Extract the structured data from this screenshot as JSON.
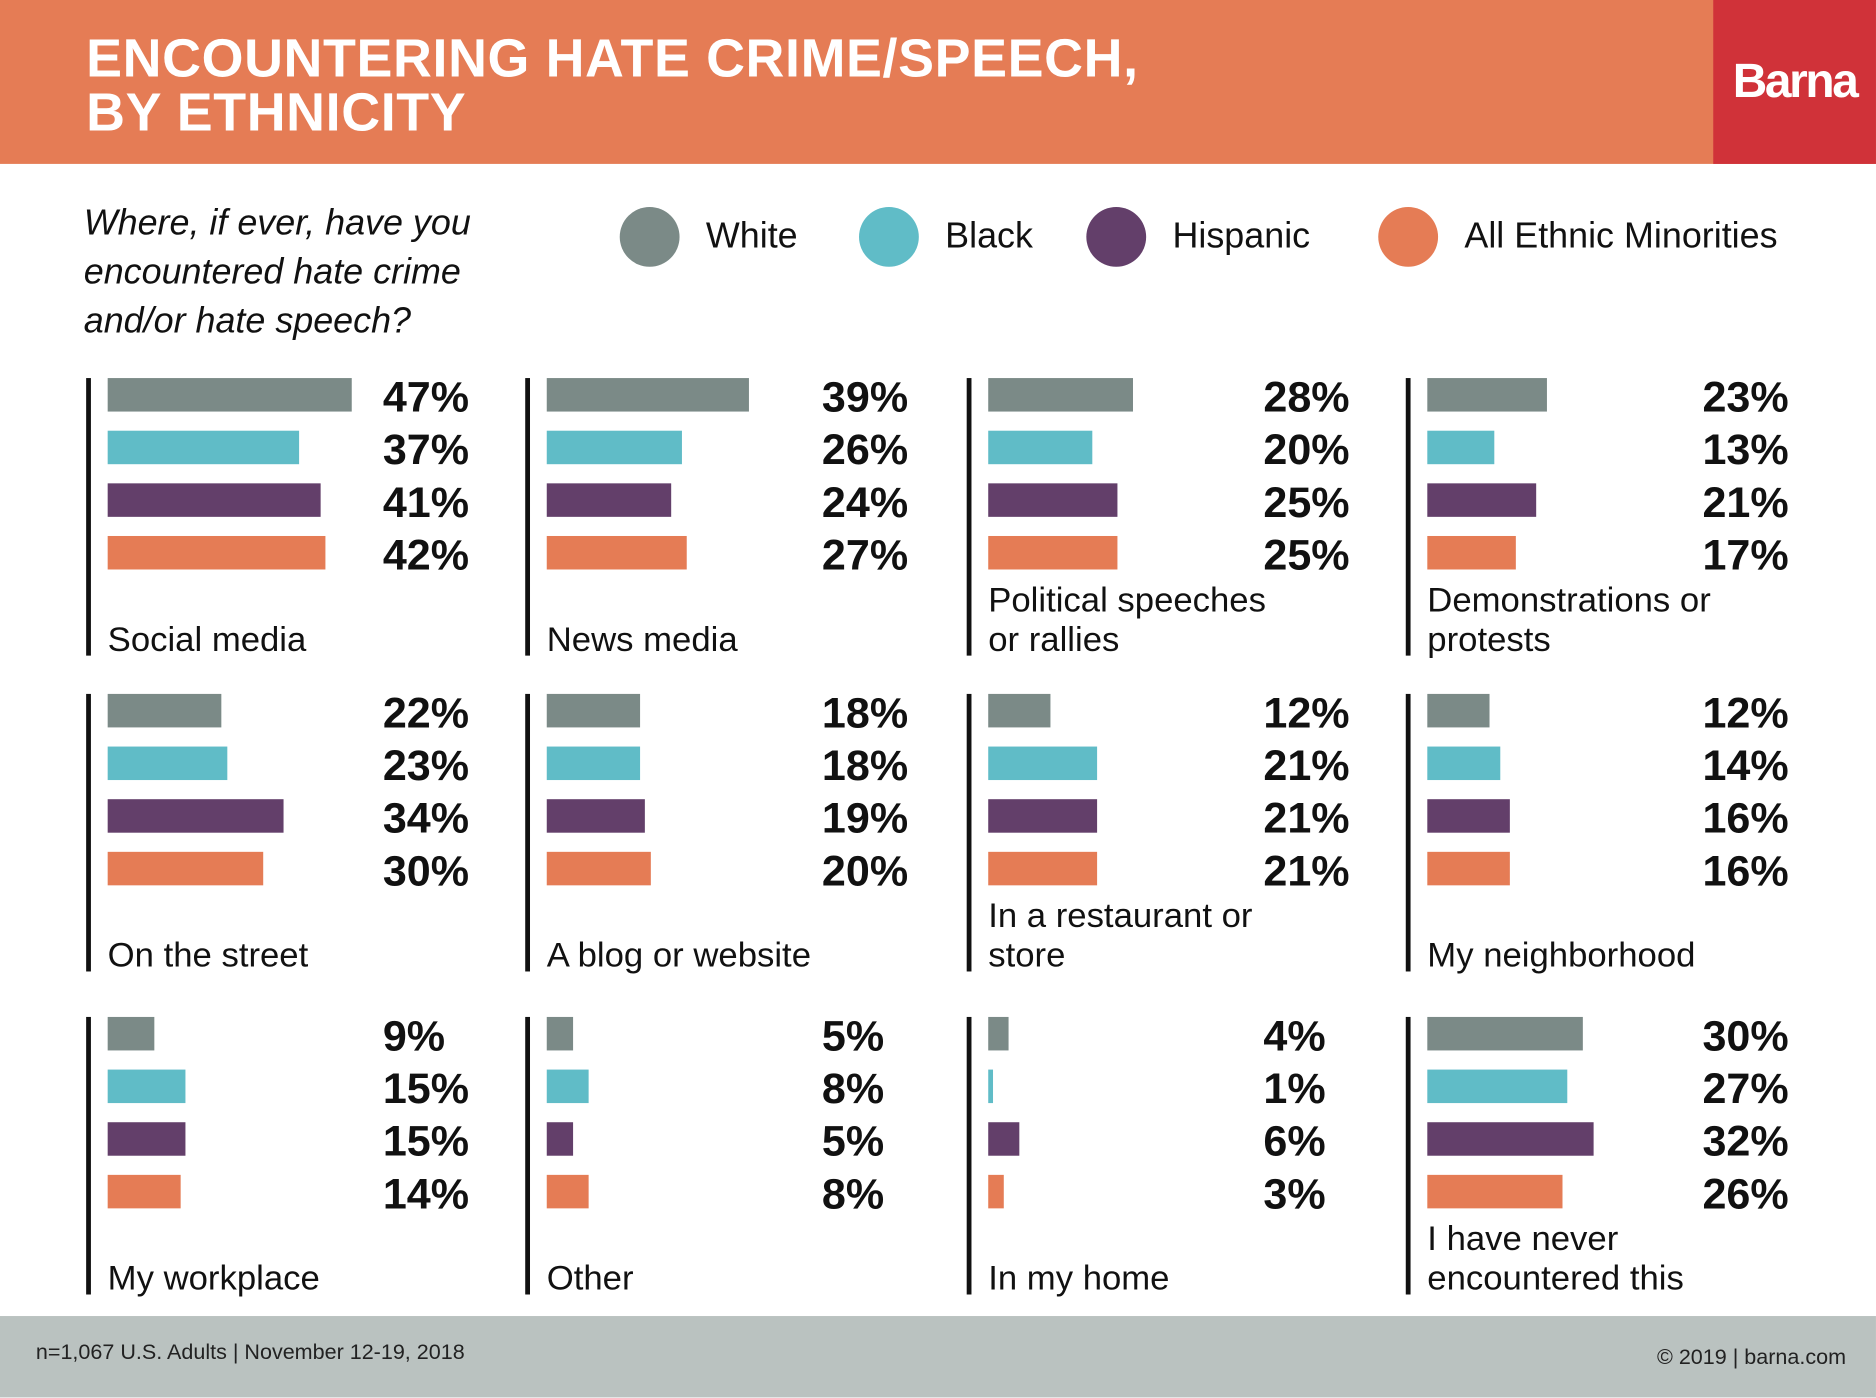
{
  "header": {
    "title_line1": "ENCOUNTERING HATE CRIME/SPEECH,",
    "title_line2": "BY ETHNICITY",
    "logo": "Barna"
  },
  "question": "Where, if ever, have you encountered hate crime and/or hate speech?",
  "colors": {
    "header": "#E57C55",
    "logo_bg": "#D03239",
    "footer": "#BAC2C0"
  },
  "footer": {
    "left": "n=1,067 U.S. Adults | November 12-19, 2018",
    "right": "© 2019 | barna.com"
  },
  "chart_data": {
    "type": "bar",
    "orientation": "horizontal",
    "legend_placement": "top",
    "series": [
      {
        "name": "White",
        "color": "#7B8A87"
      },
      {
        "name": "Black",
        "color": "#60BCC7"
      },
      {
        "name": "Hispanic",
        "color": "#633F6A"
      },
      {
        "name": "All Ethnic Minorities",
        "color": "#E57C55"
      }
    ],
    "panels": [
      {
        "label": "Social media",
        "values": [
          47,
          37,
          41,
          42
        ],
        "labels": [
          "47%",
          "37%",
          "41%",
          "42%"
        ]
      },
      {
        "label": "News media",
        "values": [
          39,
          26,
          24,
          27
        ],
        "labels": [
          "39%",
          "26%",
          "24%",
          "27%"
        ]
      },
      {
        "label": "Political speeches or rallies",
        "values": [
          28,
          20,
          25,
          25
        ],
        "labels": [
          "28%",
          "20%",
          "25%",
          "25%"
        ]
      },
      {
        "label": "Demonstrations or protests",
        "values": [
          23,
          13,
          21,
          17
        ],
        "labels": [
          "23%",
          "13%",
          "21%",
          "17%"
        ]
      },
      {
        "label": "On the street",
        "values": [
          22,
          23,
          34,
          30
        ],
        "labels": [
          "22%",
          "23%",
          "34%",
          "30%"
        ]
      },
      {
        "label": "A blog or website",
        "values": [
          18,
          18,
          19,
          20
        ],
        "labels": [
          "18%",
          "18%",
          "19%",
          "20%"
        ]
      },
      {
        "label": "In a restaurant or store",
        "values": [
          12,
          21,
          21,
          21
        ],
        "labels": [
          "12%",
          "21%",
          "21%",
          "21%"
        ]
      },
      {
        "label": "My neighborhood",
        "values": [
          12,
          14,
          16,
          16
        ],
        "labels": [
          "12%",
          "14%",
          "16%",
          "16%"
        ]
      },
      {
        "label": "My workplace",
        "values": [
          9,
          15,
          15,
          14
        ],
        "labels": [
          "9%",
          "15%",
          "15%",
          "14%"
        ]
      },
      {
        "label": "Other",
        "values": [
          5,
          8,
          5,
          8
        ],
        "labels": [
          "5%",
          "8%",
          "5%",
          "8%"
        ]
      },
      {
        "label": "In my home",
        "values": [
          4,
          1,
          6,
          3
        ],
        "labels": [
          "4%",
          "1%",
          "6%",
          "3%"
        ]
      },
      {
        "label": "I have never encountered this",
        "values": [
          30,
          27,
          32,
          26
        ],
        "labels": [
          "30%",
          "27%",
          "32%",
          "26%"
        ]
      }
    ]
  }
}
